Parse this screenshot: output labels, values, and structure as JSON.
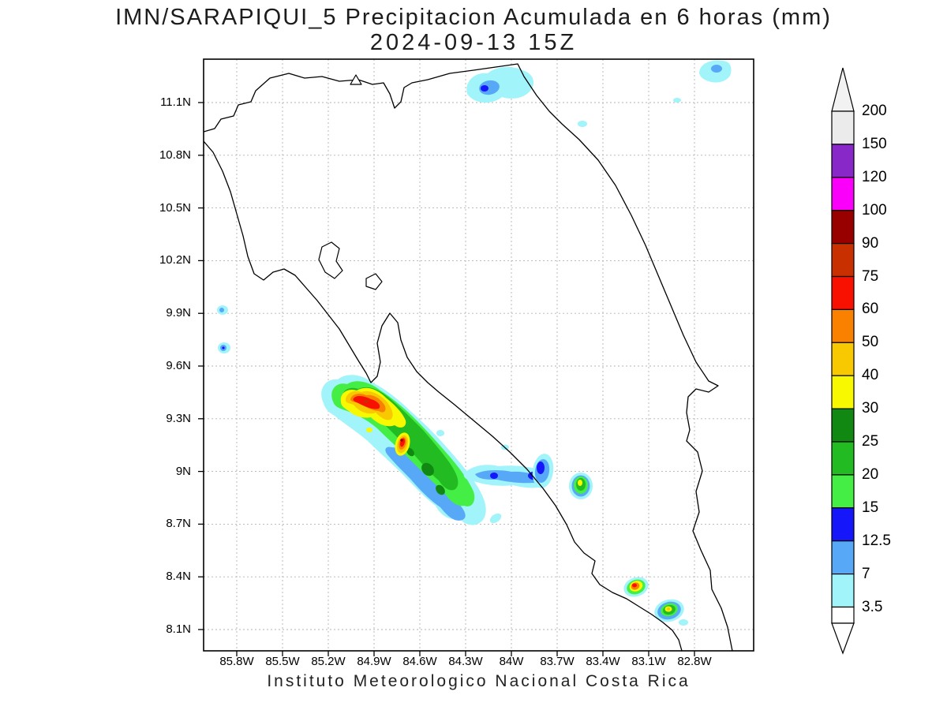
{
  "title": {
    "line1": "IMN/SARAPIQUI_5 Precipitacion Acumulada en 6 horas (mm)",
    "line2": "2024-09-13 15Z"
  },
  "footer": "Instituto Meteorologico Nacional Costa Rica",
  "map": {
    "lat_labels": [
      "11.1N",
      "10.8N",
      "10.5N",
      "10.2N",
      "9.9N",
      "9.6N",
      "9.3N",
      "9N",
      "8.7N",
      "8.4N",
      "8.1N"
    ],
    "lon_labels": [
      "85.8W",
      "85.5W",
      "85.2W",
      "84.9W",
      "84.6W",
      "84.3W",
      "84W",
      "83.7W",
      "83.4W",
      "83.1W",
      "82.8W"
    ]
  },
  "colorbar": {
    "labels": [
      "200",
      "150",
      "120",
      "100",
      "90",
      "75",
      "60",
      "50",
      "40",
      "30",
      "25",
      "20",
      "15",
      "12.5",
      "7",
      "3.5"
    ],
    "segment_colors_top_to_bottom": [
      "#f2f2f2",
      "#ebebeb",
      "#8928c8",
      "#fa00fa",
      "#980000",
      "#c83000",
      "#f81000",
      "#fa8000",
      "#f8c800",
      "#f8f800",
      "#118811",
      "#22bb22",
      "#44ee44",
      "#1616fa",
      "#58a8f8",
      "#a0f4fa",
      "#ffffff"
    ]
  }
}
